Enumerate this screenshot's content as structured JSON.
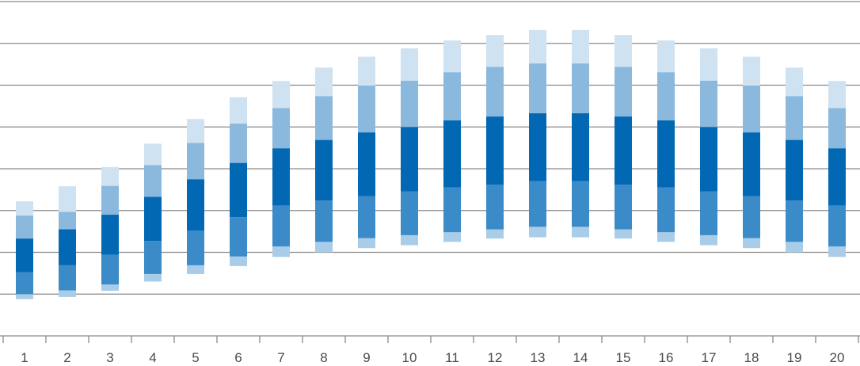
{
  "chart_data": {
    "type": "bar",
    "subtype": "floating-stacked-range",
    "categories": [
      "1",
      "2",
      "3",
      "4",
      "5",
      "6",
      "7",
      "8",
      "9",
      "10",
      "11",
      "12",
      "13",
      "14",
      "15",
      "16",
      "17",
      "18",
      "19",
      "20"
    ],
    "ylim": [
      0,
      8
    ],
    "grid": true,
    "legend": "none",
    "bands": [
      {
        "color": "#cfe2f1",
        "role": "outer-upper"
      },
      {
        "color": "#8ab9dd",
        "role": "inner-upper"
      },
      {
        "color": "#0268b4",
        "role": "central-upper"
      },
      {
        "color": "#3a8bc8",
        "role": "inner-lower"
      },
      {
        "color": "#a9cde8",
        "role": "outer-lower"
      }
    ],
    "breakpoints": [
      [
        0.88,
        1.0,
        1.52,
        2.33,
        2.88,
        3.22
      ],
      [
        0.93,
        1.09,
        1.69,
        2.55,
        2.97,
        3.58
      ],
      [
        1.08,
        1.23,
        1.94,
        2.9,
        3.59,
        4.04
      ],
      [
        1.3,
        1.48,
        2.27,
        3.33,
        4.09,
        4.6
      ],
      [
        1.48,
        1.69,
        2.52,
        3.75,
        4.62,
        5.19
      ],
      [
        1.67,
        1.9,
        2.84,
        4.14,
        5.08,
        5.71
      ],
      [
        1.89,
        2.14,
        3.12,
        4.49,
        5.45,
        6.1
      ],
      [
        2.0,
        2.25,
        3.24,
        4.69,
        5.74,
        6.42
      ],
      [
        2.1,
        2.34,
        3.34,
        4.87,
        5.99,
        6.68
      ],
      [
        2.17,
        2.41,
        3.46,
        5.0,
        6.11,
        6.88
      ],
      [
        2.25,
        2.48,
        3.55,
        5.16,
        6.31,
        7.07
      ],
      [
        2.33,
        2.55,
        3.62,
        5.25,
        6.44,
        7.2
      ],
      [
        2.36,
        2.61,
        3.7,
        5.33,
        6.52,
        7.32
      ],
      [
        2.36,
        2.61,
        3.7,
        5.33,
        6.52,
        7.32
      ],
      [
        2.33,
        2.55,
        3.62,
        5.25,
        6.44,
        7.2
      ],
      [
        2.25,
        2.48,
        3.55,
        5.16,
        6.31,
        7.07
      ],
      [
        2.17,
        2.41,
        3.46,
        5.0,
        6.11,
        6.88
      ],
      [
        2.1,
        2.34,
        3.34,
        4.87,
        5.99,
        6.68
      ],
      [
        2.0,
        2.25,
        3.24,
        4.69,
        5.74,
        6.42
      ],
      [
        1.89,
        2.14,
        3.12,
        4.49,
        5.45,
        6.1
      ]
    ]
  }
}
